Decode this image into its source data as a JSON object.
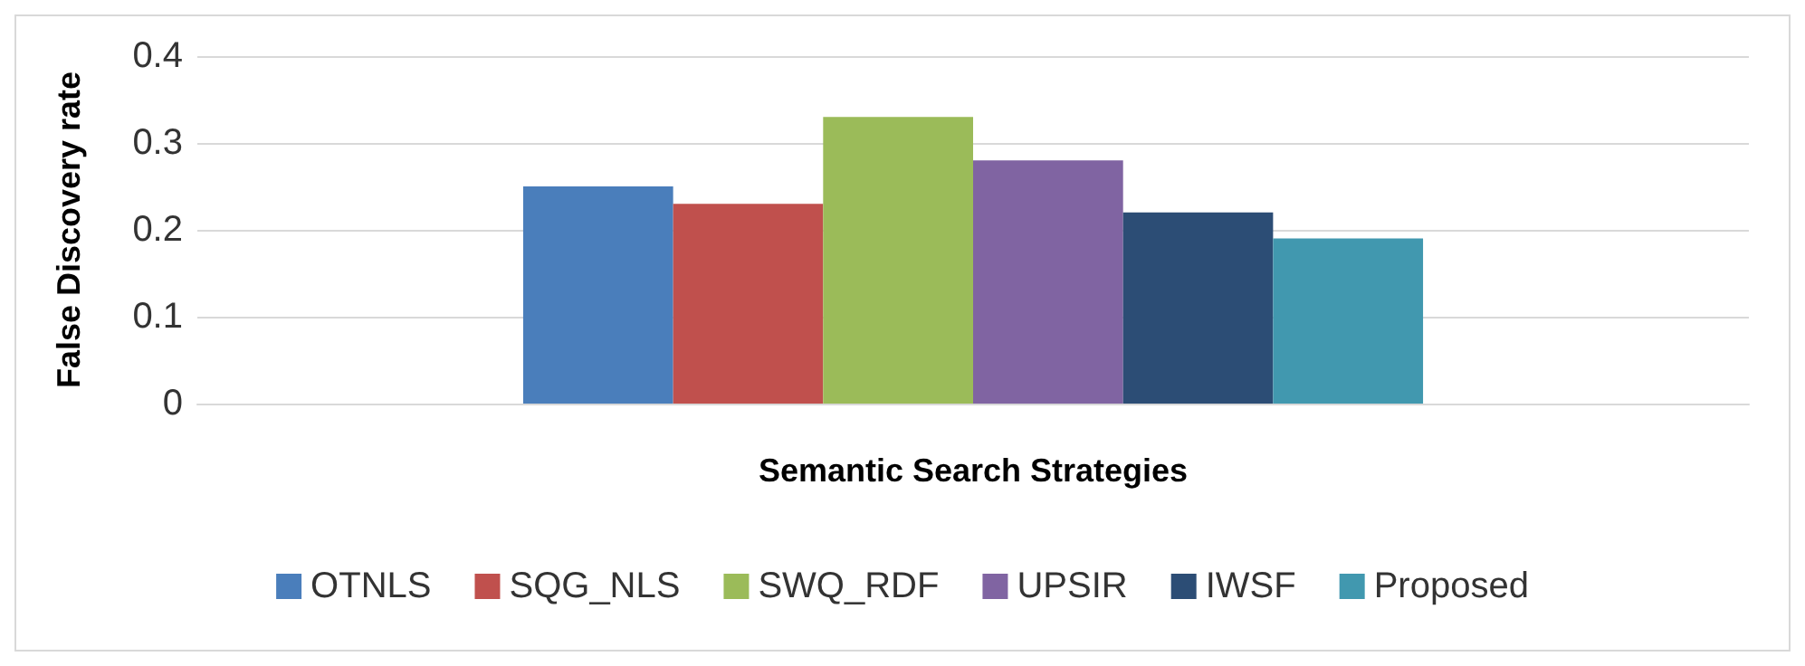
{
  "chart_data": {
    "type": "bar",
    "xlabel": "Semantic Search Strategies",
    "ylabel": "False Discovery rate",
    "categories": [
      null
    ],
    "series": [
      {
        "name": "OTNLS",
        "color": "#4a7ebb",
        "values": [
          0.25
        ]
      },
      {
        "name": "SQG_NLS",
        "color": "#c0504d",
        "values": [
          0.23
        ]
      },
      {
        "name": "SWQ_RDF",
        "color": "#9bbb59",
        "values": [
          0.33
        ]
      },
      {
        "name": "UPSIR",
        "color": "#8064a2",
        "values": [
          0.28
        ]
      },
      {
        "name": "IWSF",
        "color": "#2c4d75",
        "values": [
          0.22
        ]
      },
      {
        "name": "Proposed",
        "color": "#4198af",
        "values": [
          0.19
        ]
      }
    ],
    "ylim": [
      0,
      0.4
    ],
    "yticks": [
      0,
      0.1,
      0.2,
      0.3,
      0.4
    ],
    "grid": "y",
    "legend": "bottom"
  }
}
